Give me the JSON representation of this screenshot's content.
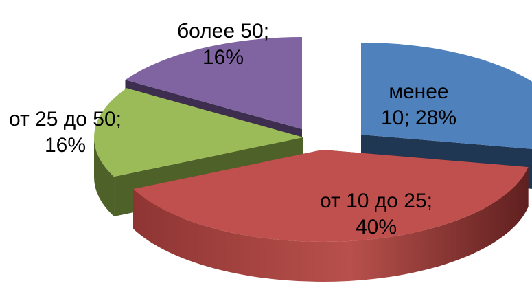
{
  "chart_data": {
    "type": "pie",
    "style": "3d-exploded",
    "slices": [
      {
        "label_lines": [
          "менее",
          "10; 28%"
        ],
        "value": 28,
        "color": "#4F81BD",
        "side_color": "#203753",
        "exploded": true
      },
      {
        "label_lines": [
          "от 10 до 25;",
          "40%"
        ],
        "value": 40,
        "color": "#C0504D",
        "side_color": "#6E2625",
        "exploded": false
      },
      {
        "label_lines": [
          "от 25 до 50;",
          "16%"
        ],
        "value": 16,
        "color": "#9BBB59",
        "side_color": "#4E6128",
        "exploded": false
      },
      {
        "label_lines": [
          "более 50;",
          "16%"
        ],
        "value": 16,
        "color": "#8064A2",
        "side_color": "#3D2E4F",
        "exploded": false
      }
    ]
  }
}
